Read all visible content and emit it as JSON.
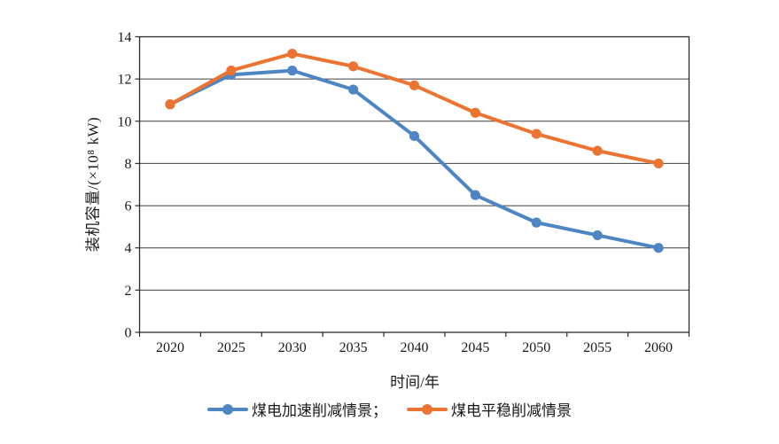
{
  "chart_data": {
    "type": "line",
    "title": "",
    "xlabel": "时间/年",
    "ylabel": "装机容量/(×10⁸ kW)",
    "categories": [
      "2020",
      "2025",
      "2030",
      "2035",
      "2040",
      "2045",
      "2050",
      "2055",
      "2060"
    ],
    "series": [
      {
        "name": "煤电加速削减情景",
        "label": "煤电加速削减情景；",
        "color": "#4e86c4",
        "marker": "circle",
        "values": [
          10.8,
          12.2,
          12.4,
          11.5,
          9.3,
          6.5,
          5.2,
          4.6,
          4.0
        ]
      },
      {
        "name": "煤电平稳削减情景",
        "label": "煤电平稳削减情景",
        "color": "#ec7432",
        "marker": "circle",
        "values": [
          10.8,
          12.4,
          13.2,
          12.6,
          11.7,
          10.4,
          9.4,
          8.6,
          8.0
        ]
      }
    ],
    "ylim": [
      0,
      14
    ],
    "y_ticks": [
      0,
      2,
      4,
      6,
      8,
      10,
      12,
      14
    ],
    "grid": "horizontal",
    "legend_position": "bottom",
    "axis_color": "#2b2b2b",
    "grid_color": "#3f3f3f",
    "tick_label_color": "#1a1a1a",
    "tick_font_size": 16
  }
}
